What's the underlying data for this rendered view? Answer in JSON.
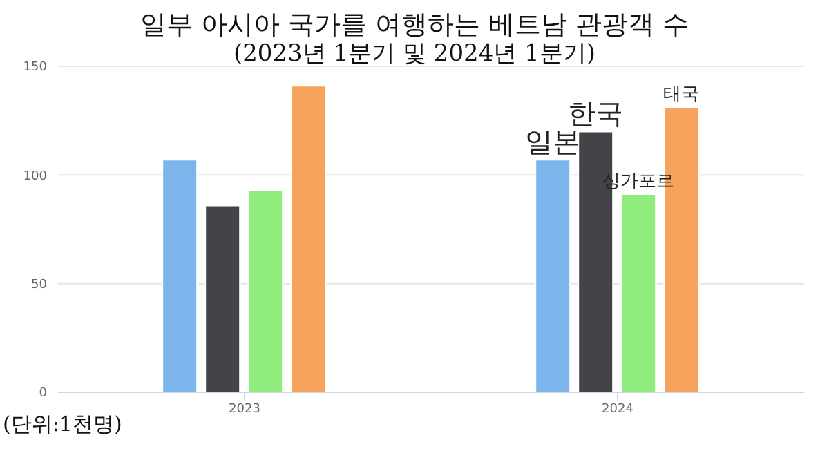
{
  "chart_data": {
    "type": "bar",
    "title": "일부 아시아 국가를 여행하는 베트남 관광객 수",
    "subtitle": "(2023년 1분기 및 2024년 1분기)",
    "categories": [
      "2023",
      "2024"
    ],
    "series": [
      {
        "name": "일본",
        "color": "#7cb5ec",
        "values": [
          107,
          107
        ]
      },
      {
        "name": "한국",
        "color": "#434348",
        "values": [
          86,
          120
        ]
      },
      {
        "name": "싱가포르",
        "color": "#90ed7d",
        "values": [
          93,
          91
        ]
      },
      {
        "name": "태국",
        "color": "#f7a35c",
        "values": [
          141,
          131
        ]
      }
    ],
    "ylim": [
      0,
      150
    ],
    "yticks": [
      0,
      50,
      100,
      150
    ],
    "grid": "y",
    "legend": false,
    "annotations": [
      "(단위:1천명)"
    ]
  }
}
